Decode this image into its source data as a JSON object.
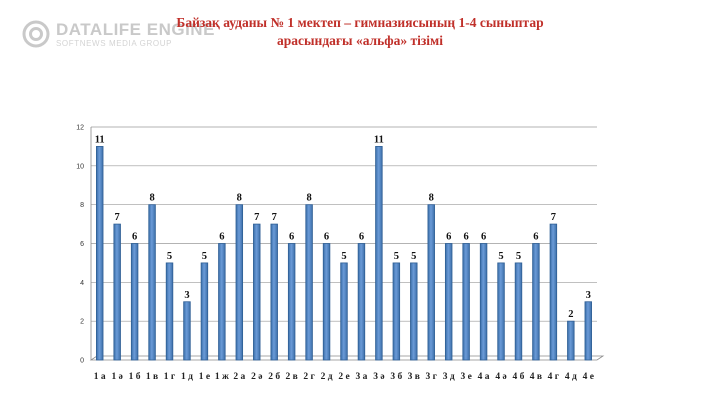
{
  "watermark": {
    "brand": "DATALIFE ENGINE",
    "tagline": "SOFTNEWS MEDIA GROUP"
  },
  "title": {
    "line1": "Байзақ ауданы  № 1 мектеп – гимназиясының 1-4 сыныптар",
    "line2": "арасындағы «альфа» тізімі"
  },
  "chart_data": {
    "type": "bar",
    "title": "Байзақ ауданы  № 1 мектеп – гимназиясының 1-4 сыныптар арасындағы «альфа» тізімі",
    "xlabel": "",
    "ylabel": "",
    "ylim": [
      0,
      12
    ],
    "yticks": [
      0,
      2,
      4,
      6,
      8,
      10,
      12
    ],
    "grid": true,
    "legend": "none",
    "bar_color": "#4f81bd",
    "categories": [
      "1 а",
      "1 ә",
      "1 б",
      "1 в",
      "1 г",
      "1 д",
      "1 е",
      "1 ж",
      "2 а",
      "2 ә",
      "2 б",
      "2 в",
      "2 г",
      "2 д",
      "2 е",
      "3 а",
      "3 ә",
      "3 б",
      "3 в",
      "3 г",
      "3 д",
      "3 е",
      "4 а",
      "4 ә",
      "4 б",
      "4 в",
      "4 г",
      "4 д",
      "4 е"
    ],
    "values": [
      11,
      7,
      6,
      8,
      5,
      3,
      5,
      6,
      8,
      7,
      7,
      6,
      8,
      6,
      5,
      6,
      11,
      5,
      5,
      8,
      6,
      6,
      6,
      5,
      5,
      6,
      7,
      2,
      3
    ]
  }
}
